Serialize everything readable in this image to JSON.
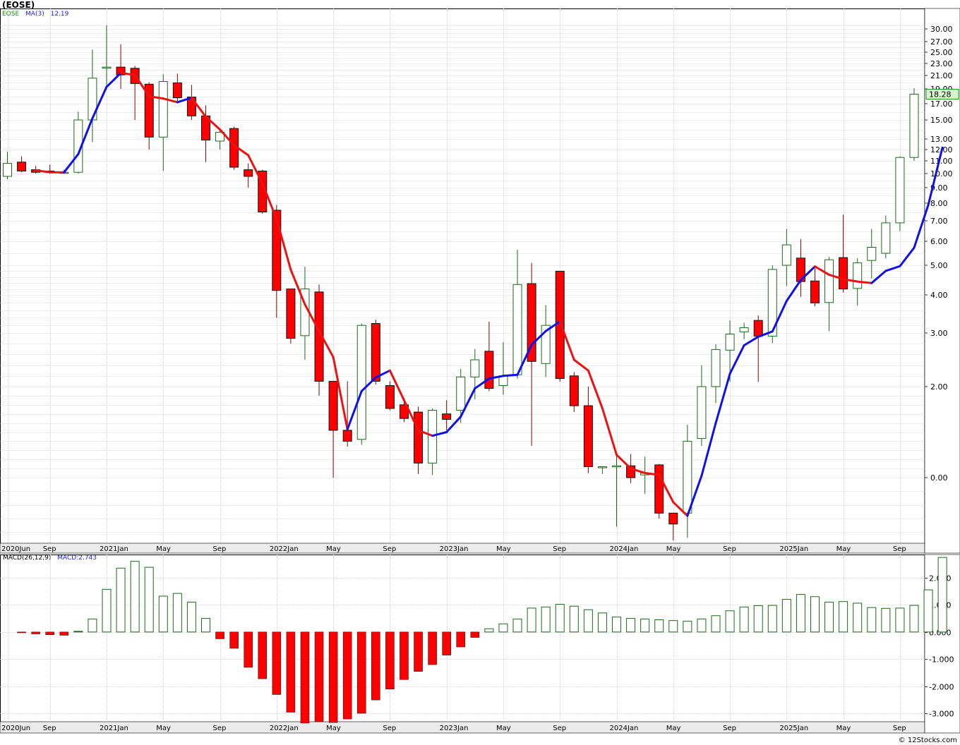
{
  "header": {
    "title": "(EOSE)",
    "legend_symbol": "EOSE",
    "legend_ma_label": "MA(3)",
    "legend_ma_value": "12.19",
    "price_tag": "18.28"
  },
  "macd_header": {
    "label": "MACD(26,12,9)",
    "value_label": "MACD:2.743"
  },
  "footer": {
    "credit": "© 12Stocks.com"
  },
  "colors": {
    "up_candle": "#1a6b1a",
    "down_candle": "#ff0000",
    "ma_up": "#1010ee",
    "ma_down": "#ee1111",
    "macd_pos": "#1a6b1a",
    "macd_neg": "#ff0000",
    "grid": "#c8c8c8",
    "price_tag_bg": "#d8f5d0"
  },
  "chart_data": [
    {
      "type": "candlestick",
      "name": "EOSE monthly",
      "y_scale": "log",
      "y_ticks": [
        "30.00",
        "27.00",
        "25.00",
        "23.00",
        "21.00",
        "19.00",
        "17.00",
        "15.00",
        "13.00",
        "12.00",
        "11.00",
        "10.00",
        "9.00",
        "8.00",
        "7.00",
        "6.00",
        "5.00",
        "4.00",
        "3.00",
        "2.00",
        "0.00"
      ],
      "x_ticks": [
        "2020Jun",
        "Sep",
        "2021Jan",
        "May",
        "Sep",
        "2022Jan",
        "May",
        "Sep",
        "2023Jan",
        "May",
        "Sep",
        "2024Jan",
        "May",
        "Sep",
        "2025Jan",
        "May",
        "Sep"
      ],
      "candles": [
        {
          "o": 9.8,
          "h": 11.8,
          "l": 9.6,
          "c": 10.8
        },
        {
          "o": 10.9,
          "h": 11.4,
          "l": 10.1,
          "c": 10.2
        },
        {
          "o": 10.3,
          "h": 10.6,
          "l": 10.0,
          "c": 10.1
        },
        {
          "o": 10.2,
          "h": 10.7,
          "l": 10.0,
          "c": 10.1
        },
        {
          "o": 10.1,
          "h": 10.3,
          "l": 10.0,
          "c": 10.1
        },
        {
          "o": 10.1,
          "h": 16.0,
          "l": 10.0,
          "c": 15.0
        },
        {
          "o": 15.0,
          "h": 25.5,
          "l": 12.7,
          "c": 20.6
        },
        {
          "o": 22.4,
          "h": 31.0,
          "l": 19.5,
          "c": 22.4
        },
        {
          "o": 22.4,
          "h": 26.5,
          "l": 19.0,
          "c": 21.1
        },
        {
          "o": 22.2,
          "h": 22.6,
          "l": 15.0,
          "c": 19.8
        },
        {
          "o": 19.7,
          "h": 20.0,
          "l": 12.0,
          "c": 13.2
        },
        {
          "o": 13.2,
          "h": 21.2,
          "l": 10.2,
          "c": 20.1
        },
        {
          "o": 19.9,
          "h": 21.3,
          "l": 17.3,
          "c": 17.8
        },
        {
          "o": 17.9,
          "h": 19.6,
          "l": 15.0,
          "c": 15.5
        },
        {
          "o": 15.5,
          "h": 16.8,
          "l": 10.9,
          "c": 12.9
        },
        {
          "o": 12.8,
          "h": 13.9,
          "l": 12.0,
          "c": 13.7
        },
        {
          "o": 14.1,
          "h": 14.3,
          "l": 10.3,
          "c": 10.5
        },
        {
          "o": 10.3,
          "h": 10.8,
          "l": 9.0,
          "c": 9.8
        },
        {
          "o": 10.2,
          "h": 10.3,
          "l": 7.4,
          "c": 7.5
        },
        {
          "o": 7.6,
          "h": 7.9,
          "l": 3.4,
          "c": 4.15
        },
        {
          "o": 4.2,
          "h": 4.2,
          "l": 2.8,
          "c": 2.9
        },
        {
          "o": 2.95,
          "h": 4.95,
          "l": 2.5,
          "c": 4.2
        },
        {
          "o": 4.1,
          "h": 4.35,
          "l": 1.9,
          "c": 2.1
        },
        {
          "o": 2.1,
          "h": 2.1,
          "l": 1.0,
          "c": 1.52
        },
        {
          "o": 1.52,
          "h": 2.1,
          "l": 1.34,
          "c": 1.4
        },
        {
          "o": 1.42,
          "h": 3.25,
          "l": 1.36,
          "c": 3.2
        },
        {
          "o": 3.25,
          "h": 3.35,
          "l": 2.04,
          "c": 2.1
        },
        {
          "o": 2.02,
          "h": 2.1,
          "l": 1.74,
          "c": 1.76
        },
        {
          "o": 1.8,
          "h": 1.83,
          "l": 1.61,
          "c": 1.65
        },
        {
          "o": 1.72,
          "h": 1.78,
          "l": 1.04,
          "c": 1.16
        },
        {
          "o": 1.16,
          "h": 1.76,
          "l": 1.03,
          "c": 1.74
        },
        {
          "o": 1.7,
          "h": 1.85,
          "l": 1.52,
          "c": 1.64
        },
        {
          "o": 1.74,
          "h": 2.33,
          "l": 1.6,
          "c": 2.18
        },
        {
          "o": 2.18,
          "h": 2.7,
          "l": 1.86,
          "c": 2.5
        },
        {
          "o": 2.66,
          "h": 3.3,
          "l": 1.95,
          "c": 1.98
        },
        {
          "o": 2.02,
          "h": 2.83,
          "l": 1.91,
          "c": 2.2
        },
        {
          "o": 2.22,
          "h": 5.65,
          "l": 2.15,
          "c": 4.35
        },
        {
          "o": 4.38,
          "h": 5.1,
          "l": 1.35,
          "c": 2.47
        },
        {
          "o": 2.43,
          "h": 3.73,
          "l": 2.18,
          "c": 3.2
        },
        {
          "o": 4.8,
          "h": 4.8,
          "l": 2.09,
          "c": 2.15
        },
        {
          "o": 2.2,
          "h": 2.27,
          "l": 1.72,
          "c": 1.79
        },
        {
          "o": 1.79,
          "h": 2.0,
          "l": 1.05,
          "c": 1.12
        },
        {
          "o": 1.12,
          "h": 1.12,
          "l": 1.04,
          "c": 1.12
        },
        {
          "o": 1.12,
          "h": 1.27,
          "l": 0.82,
          "c": 1.13
        },
        {
          "o": 1.13,
          "h": 1.26,
          "l": 0.98,
          "c": 1.0
        },
        {
          "o": 1.03,
          "h": 1.23,
          "l": 0.94,
          "c": 1.05
        },
        {
          "o": 1.14,
          "h": 1.15,
          "l": 0.85,
          "c": 0.87
        },
        {
          "o": 0.87,
          "h": 0.87,
          "l": 0.74,
          "c": 0.83
        },
        {
          "o": 0.87,
          "h": 1.58,
          "l": 0.78,
          "c": 1.4
        },
        {
          "o": 1.43,
          "h": 2.4,
          "l": 1.35,
          "c": 2.0
        },
        {
          "o": 2.0,
          "h": 2.79,
          "l": 1.82,
          "c": 2.69
        },
        {
          "o": 2.68,
          "h": 3.33,
          "l": 2.09,
          "c": 2.98
        },
        {
          "o": 3.03,
          "h": 3.27,
          "l": 2.88,
          "c": 3.14
        },
        {
          "o": 3.33,
          "h": 3.46,
          "l": 2.09,
          "c": 2.94
        },
        {
          "o": 2.94,
          "h": 5.0,
          "l": 2.81,
          "c": 4.86
        },
        {
          "o": 5.0,
          "h": 6.6,
          "l": 4.3,
          "c": 5.85
        },
        {
          "o": 5.3,
          "h": 6.1,
          "l": 3.95,
          "c": 4.45
        },
        {
          "o": 4.47,
          "h": 4.9,
          "l": 3.7,
          "c": 3.79
        },
        {
          "o": 3.8,
          "h": 5.35,
          "l": 3.05,
          "c": 5.23
        },
        {
          "o": 5.32,
          "h": 7.35,
          "l": 4.08,
          "c": 4.2
        },
        {
          "o": 4.22,
          "h": 5.3,
          "l": 3.72,
          "c": 5.1
        },
        {
          "o": 5.2,
          "h": 6.6,
          "l": 4.55,
          "c": 5.75
        },
        {
          "o": 5.5,
          "h": 7.3,
          "l": 5.29,
          "c": 6.9
        },
        {
          "o": 6.9,
          "h": 11.4,
          "l": 6.5,
          "c": 11.3
        },
        {
          "o": 11.3,
          "h": 19.1,
          "l": 11.0,
          "c": 18.28
        }
      ],
      "ma3": [
        null,
        null,
        10.25,
        10.1,
        10.1,
        11.6,
        15.2,
        19.3,
        21.4,
        21.1,
        18.0,
        17.7,
        17.2,
        17.8,
        15.4,
        14.0,
        12.4,
        11.5,
        9.3,
        7.1,
        4.85,
        3.75,
        3.05,
        2.55,
        1.53,
        1.95,
        2.17,
        2.3,
        1.85,
        1.52,
        1.46,
        1.5,
        1.67,
        1.98,
        2.15,
        2.2,
        2.22,
        2.78,
        3.05,
        3.3,
        2.5,
        2.3,
        1.76,
        1.25,
        1.1,
        1.05,
        1.03,
        0.91,
        0.86,
        1.02,
        1.6,
        2.24,
        2.77,
        2.93,
        3.04,
        3.84,
        4.5,
        4.96,
        4.68,
        4.53,
        4.45,
        4.4,
        4.81,
        4.97,
        5.73,
        7.9,
        12.19
      ],
      "ma_rising": [
        false,
        false,
        false,
        false,
        false,
        true,
        true,
        true,
        true,
        false,
        false,
        false,
        false,
        true,
        false,
        false,
        false,
        false,
        false,
        false,
        false,
        false,
        false,
        false,
        false,
        true,
        true,
        true,
        false,
        false,
        false,
        true,
        true,
        true,
        true,
        true,
        true,
        true,
        true,
        true,
        false,
        false,
        false,
        false,
        false,
        false,
        false,
        false,
        false,
        true,
        true,
        true,
        true,
        true,
        true,
        true,
        true,
        true,
        false,
        false,
        false,
        false,
        true,
        true,
        true,
        true,
        true
      ]
    },
    {
      "type": "bar",
      "name": "MACD(26,12,9)",
      "y_ticks": [
        "2.000",
        "1.000",
        "0.000",
        "-1.000",
        "-2.000",
        "-3.000"
      ],
      "y_range": [
        -3.3,
        2.85
      ],
      "values": [
        -0.03,
        -0.07,
        -0.1,
        -0.12,
        0.0,
        0.48,
        1.57,
        2.35,
        2.6,
        2.38,
        1.32,
        1.42,
        1.1,
        0.5,
        -0.25,
        -0.6,
        -1.3,
        -1.72,
        -2.3,
        -2.95,
        -3.35,
        -3.3,
        -3.33,
        -3.2,
        -2.99,
        -2.5,
        -2.1,
        -1.75,
        -1.45,
        -1.2,
        -0.85,
        -0.55,
        -0.2,
        0.12,
        0.3,
        0.48,
        0.88,
        0.92,
        1.02,
        0.95,
        0.82,
        0.7,
        0.55,
        0.5,
        0.48,
        0.45,
        0.42,
        0.4,
        0.48,
        0.6,
        0.78,
        0.92,
        0.97,
        0.98,
        1.2,
        1.38,
        1.3,
        1.1,
        1.12,
        1.06,
        0.9,
        0.87,
        0.88,
        0.98,
        1.55,
        2.743
      ],
      "x_ticks": [
        "2020Jun",
        "Sep",
        "2021Jan",
        "May",
        "Sep",
        "2022Jan",
        "May",
        "Sep",
        "2023Jan",
        "May",
        "Sep",
        "2024Jan",
        "May",
        "Sep",
        "2025Jan",
        "May",
        "Sep"
      ]
    }
  ]
}
